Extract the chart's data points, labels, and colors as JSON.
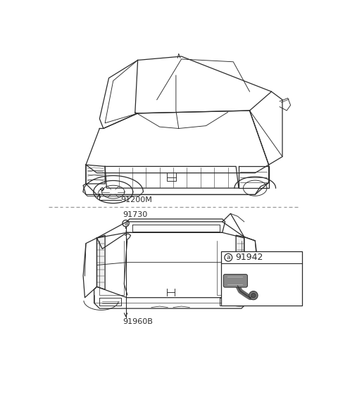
{
  "bg": "#ffffff",
  "lc": "#2a2a2a",
  "lc_light": "#555555",
  "dlc": "#999999",
  "label_91200M": "91200M",
  "label_91730": "91730",
  "label_91960B": "91960B",
  "label_91942": "91942",
  "fig_width": 4.8,
  "fig_height": 5.71,
  "dpi": 100
}
